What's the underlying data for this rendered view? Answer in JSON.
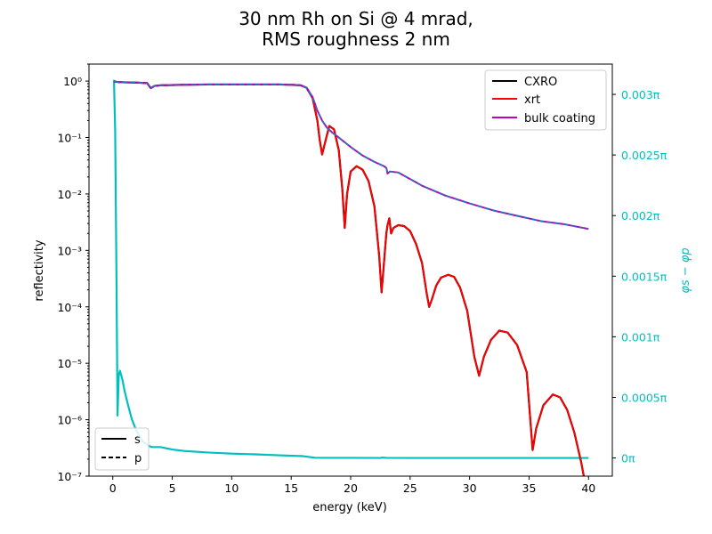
{
  "chart_data": {
    "type": "line",
    "title": "30 nm Rh on Si @ 4 mrad,",
    "subtitle": "RMS roughness 2 nm",
    "xlabel": "energy (keV)",
    "ylabel": "reflectivity",
    "y2label": "φs − φp",
    "xlim": [
      -2,
      42
    ],
    "ylim_log": [
      1e-07,
      2
    ],
    "y2lim_pi": [
      -0.00015,
      0.00325
    ],
    "x_ticks": [
      "0",
      "5",
      "10",
      "15",
      "20",
      "25",
      "30",
      "35",
      "40"
    ],
    "y_ticks": [
      "10⁰",
      "10⁻¹",
      "10⁻²",
      "10⁻³",
      "10⁻⁴",
      "10⁻⁵",
      "10⁻⁶",
      "10⁻⁷"
    ],
    "y2_ticks": [
      "0π",
      "0.0005π",
      "0.001π",
      "0.0015π",
      "0.002π",
      "0.0025π",
      "0.003π"
    ],
    "y2_tick_values": [
      0,
      0.0005,
      0.001,
      0.0015,
      0.002,
      0.0025,
      0.003
    ],
    "legend_upper": [
      "CXRO",
      "xrt",
      "bulk coating"
    ],
    "legend_lower": [
      "s",
      "p"
    ],
    "legend_upper_pos": "top-right",
    "legend_lower_pos": "bottom-left",
    "colors": {
      "cxro": "#000000",
      "xrt": "#ff0000",
      "bulk": "#bf00bf",
      "bulk_dash": "#1f77b4",
      "phase": "#00bfbf"
    },
    "series": [
      {
        "name": "CXRO",
        "x": [
          0.1,
          0.5,
          1,
          2,
          2.9,
          3.0,
          3.2,
          3.5,
          4,
          6,
          8,
          10,
          12,
          14,
          15,
          15.8,
          16.3,
          16.8,
          17.2,
          17.4,
          17.6,
          17.9,
          18.2,
          18.6,
          19.0,
          19.3,
          19.5,
          19.7,
          20.0,
          20.5,
          21.0,
          21.5,
          22.0,
          22.4,
          22.6,
          22.8,
          23.0,
          23.1,
          23.25,
          23.4,
          23.6,
          24.0,
          24.5,
          25.0,
          25.5,
          26.0,
          26.4,
          26.6,
          26.8,
          27.2,
          27.6,
          28.2,
          28.7,
          29.2,
          29.8,
          30.4,
          30.8,
          31.2,
          31.8,
          32.5,
          33.2,
          34.0,
          34.8,
          35.3,
          35.6,
          36.2,
          37.0,
          37.6,
          38.2,
          38.8,
          39.4,
          39.6,
          39.8
        ],
        "y": [
          0.98,
          0.96,
          0.95,
          0.94,
          0.92,
          0.85,
          0.75,
          0.82,
          0.84,
          0.86,
          0.87,
          0.87,
          0.87,
          0.87,
          0.86,
          0.84,
          0.76,
          0.5,
          0.2,
          0.09,
          0.05,
          0.09,
          0.16,
          0.14,
          0.06,
          0.012,
          0.0025,
          0.01,
          0.025,
          0.031,
          0.027,
          0.017,
          0.006,
          0.0008,
          0.00018,
          0.0006,
          0.002,
          0.0028,
          0.0037,
          0.002,
          0.0025,
          0.0028,
          0.0027,
          0.0022,
          0.0013,
          0.0006,
          0.00017,
          0.0001,
          0.00013,
          0.00024,
          0.00033,
          0.00037,
          0.00034,
          0.00022,
          8.5e-05,
          1.3e-05,
          6e-06,
          1.3e-05,
          2.6e-05,
          3.8e-05,
          3.5e-05,
          2.1e-05,
          7e-06,
          2.9e-07,
          7e-07,
          1.8e-06,
          2.8e-06,
          2.5e-06,
          1.5e-06,
          6e-07,
          1.7e-07,
          1e-07,
          5e-08
        ]
      },
      {
        "name": "bulk coating",
        "x": [
          0.1,
          0.5,
          1,
          2,
          2.9,
          3.0,
          3.2,
          3.5,
          4,
          6,
          8,
          10,
          12,
          14,
          15,
          15.8,
          16.3,
          16.8,
          17.2,
          17.6,
          18,
          18.5,
          19,
          20,
          21,
          22,
          22.8,
          23.0,
          23.1,
          23.3,
          24,
          26,
          28,
          30,
          32,
          34,
          36,
          38,
          40
        ],
        "y": [
          0.98,
          0.96,
          0.95,
          0.94,
          0.92,
          0.85,
          0.75,
          0.82,
          0.84,
          0.86,
          0.87,
          0.87,
          0.87,
          0.87,
          0.86,
          0.84,
          0.76,
          0.52,
          0.3,
          0.2,
          0.15,
          0.12,
          0.1,
          0.068,
          0.048,
          0.037,
          0.031,
          0.029,
          0.023,
          0.025,
          0.024,
          0.014,
          0.0093,
          0.0068,
          0.0051,
          0.0041,
          0.0033,
          0.0029,
          0.0024
        ]
      },
      {
        "name": "phase φs − φp",
        "x": [
          0.1,
          0.2,
          0.3,
          0.4,
          0.5,
          0.6,
          0.8,
          1.0,
          1.3,
          1.6,
          2.0,
          2.5,
          3.0,
          3.3,
          4,
          5,
          6,
          8,
          10,
          12,
          14,
          16,
          17.0,
          18,
          20,
          22.5,
          22.6,
          23,
          25,
          30,
          35,
          40
        ],
        "y": [
          0.00312,
          0.0027,
          0.0016,
          0.00035,
          0.00068,
          0.00072,
          0.00065,
          0.00055,
          0.00043,
          0.00032,
          0.00022,
          0.00014,
          0.0001,
          9e-05,
          9e-05,
          7e-05,
          5.8e-05,
          4.5e-05,
          3.6e-05,
          3e-05,
          2.2e-05,
          1.5e-05,
          2e-06,
          1e-06,
          1e-06,
          0.0,
          3e-06,
          1e-06,
          0.0,
          0.0,
          0.0,
          0.0
        ]
      }
    ]
  }
}
